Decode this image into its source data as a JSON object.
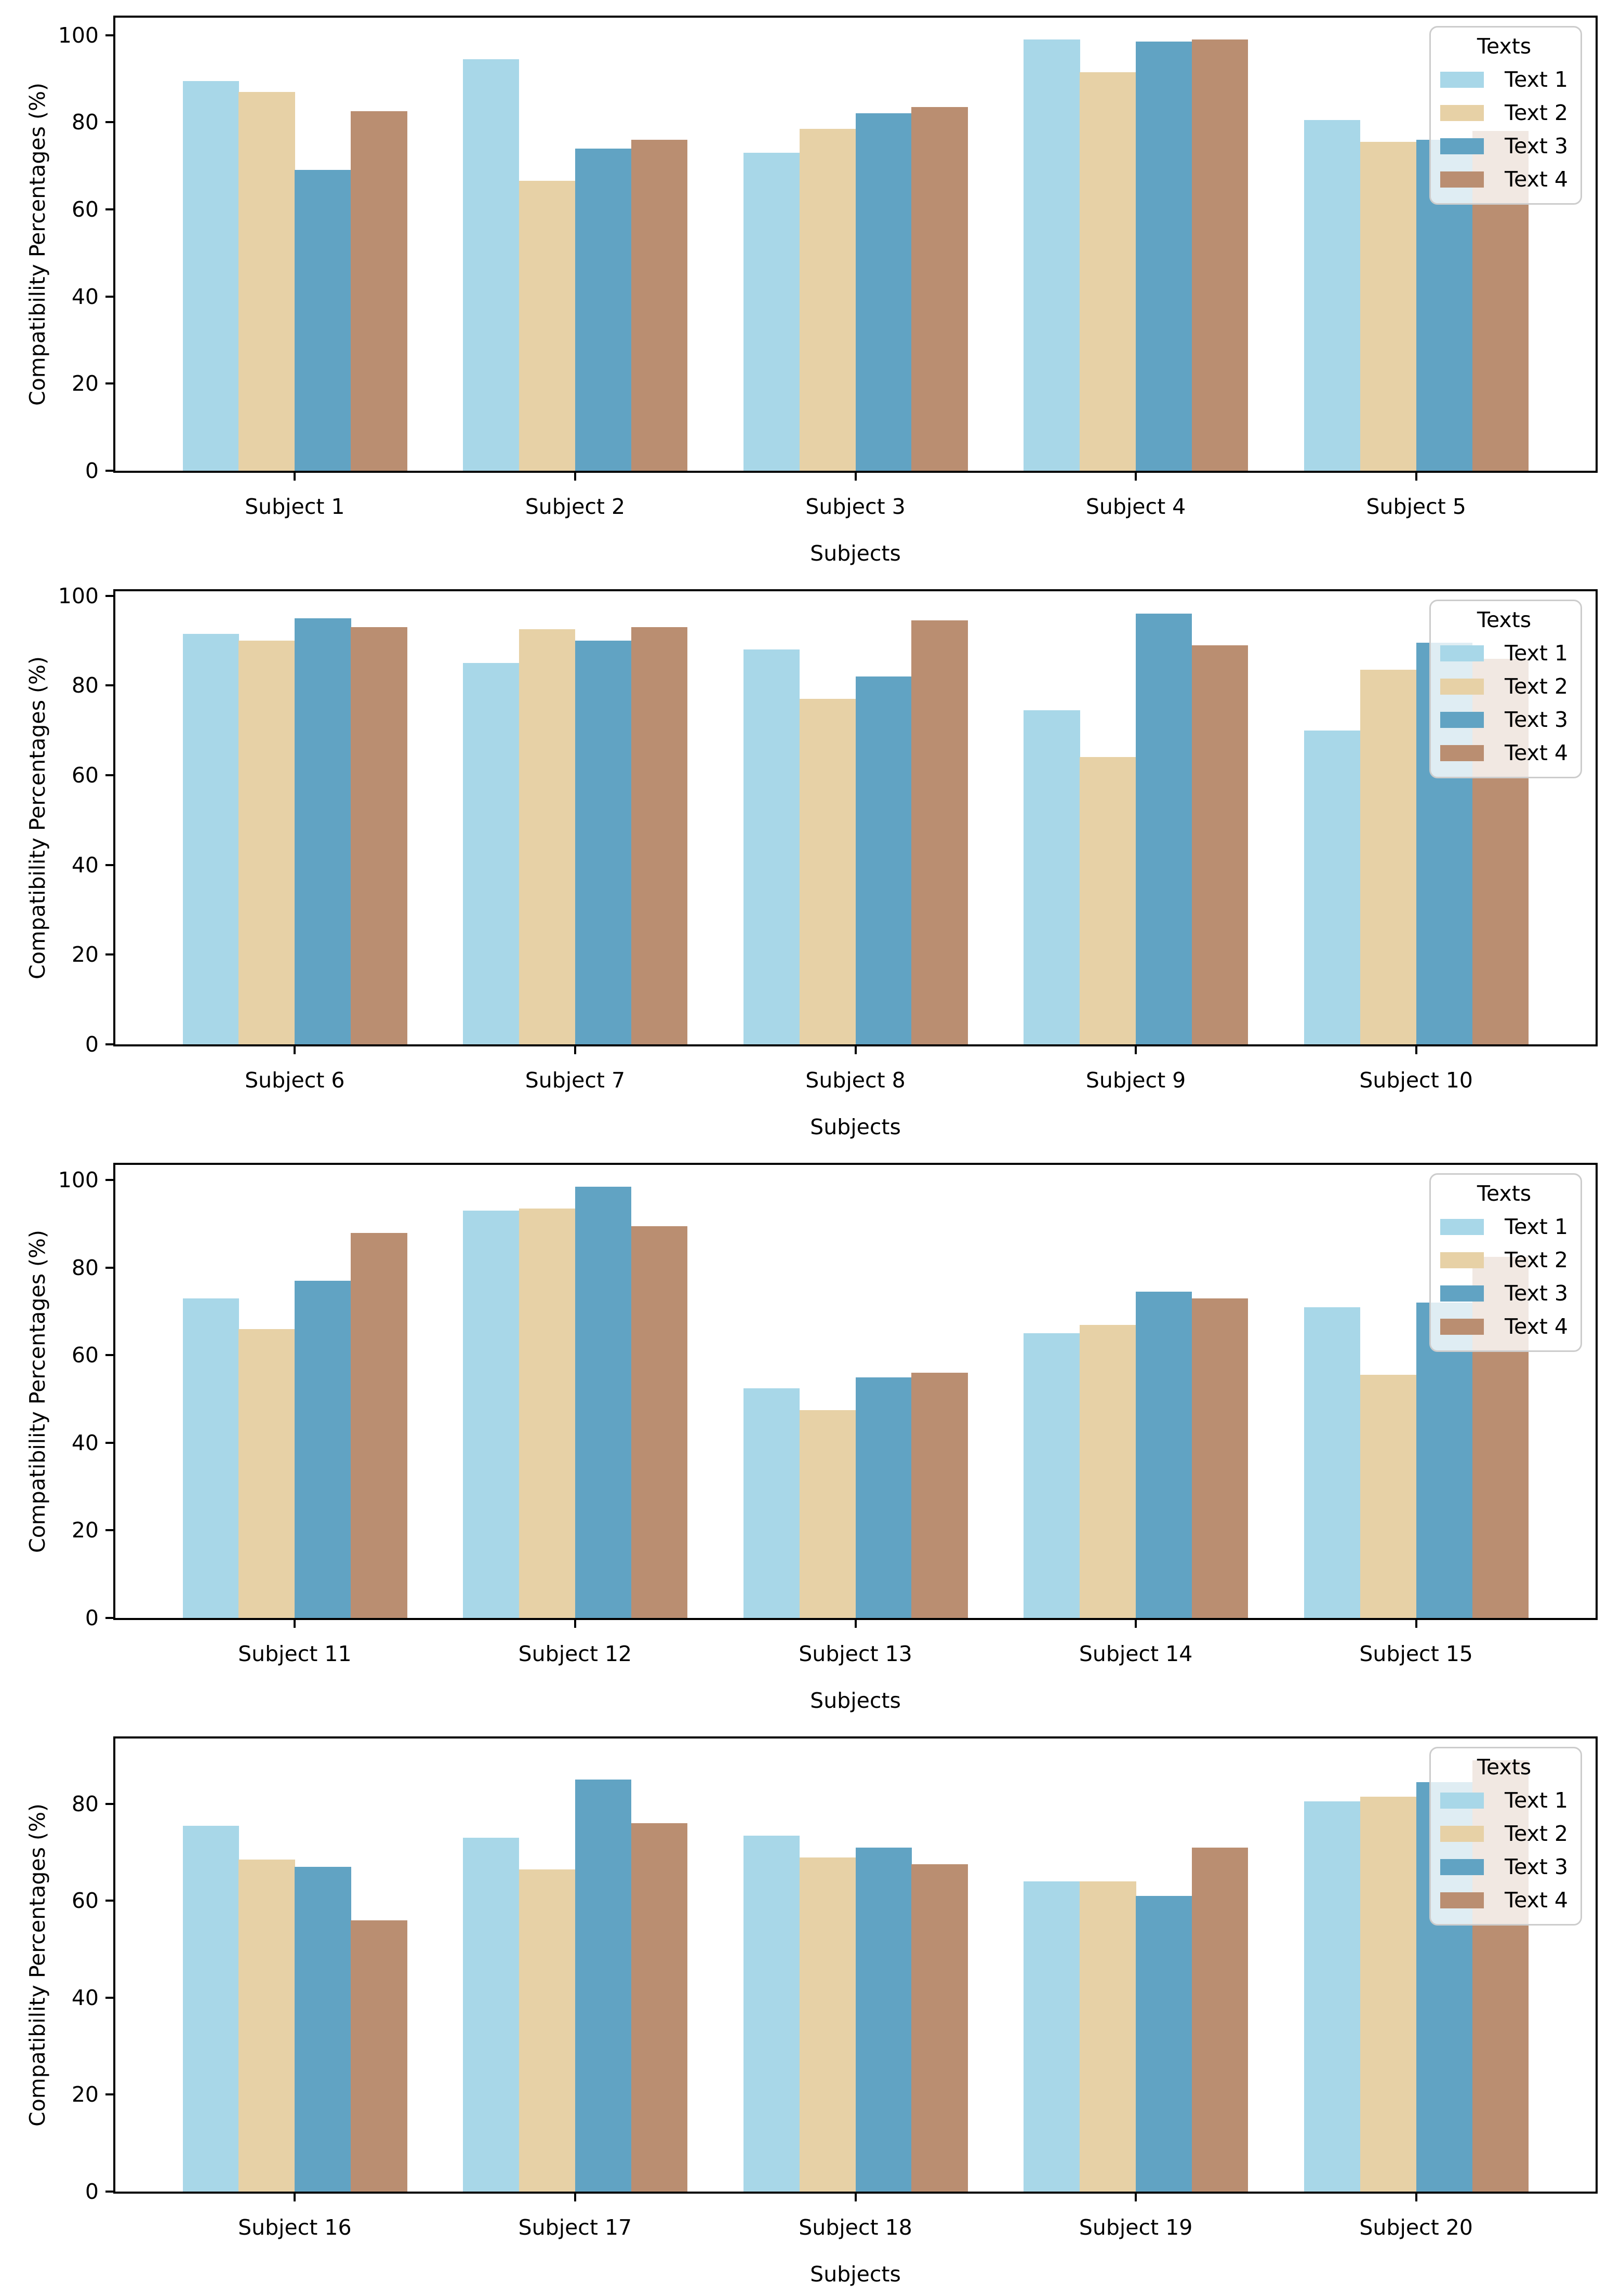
{
  "figure_background": "#ffffff",
  "palette": {
    "text1": "#A8D7E8",
    "text2": "#E7D1A6",
    "text3": "#61A3C3",
    "text4": "#BA8E71"
  },
  "chart_data": [
    {
      "type": "bar",
      "title": "",
      "xlabel": "Subjects",
      "ylabel": "Compatibility Percentages (%)",
      "legend_title": "Texts",
      "legend_position": "upper right",
      "grid": false,
      "categories": [
        "Subject 1",
        "Subject 2",
        "Subject 3",
        "Subject 4",
        "Subject 5"
      ],
      "yticks": [
        0,
        20,
        40,
        60,
        80,
        100
      ],
      "ylim": [
        0,
        104
      ],
      "series": [
        {
          "name": "Text 1",
          "color": "#A8D7E8",
          "values": [
            89.5,
            94.5,
            73.0,
            99.0,
            80.5
          ]
        },
        {
          "name": "Text 2",
          "color": "#E7D1A6",
          "values": [
            87.0,
            66.5,
            78.5,
            91.5,
            75.5
          ]
        },
        {
          "name": "Text 3",
          "color": "#61A3C3",
          "values": [
            69.0,
            74.0,
            82.0,
            98.5,
            76.0
          ]
        },
        {
          "name": "Text 4",
          "color": "#BA8E71",
          "values": [
            82.5,
            76.0,
            83.5,
            99.0,
            78.0
          ]
        }
      ]
    },
    {
      "type": "bar",
      "title": "",
      "xlabel": "Subjects",
      "ylabel": "Compatibility Percentages (%)",
      "legend_title": "Texts",
      "legend_position": "upper right",
      "grid": false,
      "categories": [
        "Subject 6",
        "Subject 7",
        "Subject 8",
        "Subject 9",
        "Subject 10"
      ],
      "yticks": [
        0,
        20,
        40,
        60,
        80,
        100
      ],
      "ylim": [
        0,
        101
      ],
      "series": [
        {
          "name": "Text 1",
          "color": "#A8D7E8",
          "values": [
            91.5,
            85.0,
            88.0,
            74.5,
            70.0
          ]
        },
        {
          "name": "Text 2",
          "color": "#E7D1A6",
          "values": [
            90.0,
            92.5,
            77.0,
            64.0,
            83.5
          ]
        },
        {
          "name": "Text 3",
          "color": "#61A3C3",
          "values": [
            95.0,
            90.0,
            82.0,
            96.0,
            89.5
          ]
        },
        {
          "name": "Text 4",
          "color": "#BA8E71",
          "values": [
            93.0,
            93.0,
            94.5,
            89.0,
            86.0
          ]
        }
      ]
    },
    {
      "type": "bar",
      "title": "",
      "xlabel": "Subjects",
      "ylabel": "Compatibility Percentages (%)",
      "legend_title": "Texts",
      "legend_position": "upper right",
      "grid": false,
      "categories": [
        "Subject 11",
        "Subject 12",
        "Subject 13",
        "Subject 14",
        "Subject 15"
      ],
      "yticks": [
        0,
        20,
        40,
        60,
        80,
        100
      ],
      "ylim": [
        0,
        103.5
      ],
      "series": [
        {
          "name": "Text 1",
          "color": "#A8D7E8",
          "values": [
            73.0,
            93.0,
            52.5,
            65.0,
            71.0
          ]
        },
        {
          "name": "Text 2",
          "color": "#E7D1A6",
          "values": [
            66.0,
            93.5,
            47.5,
            67.0,
            55.5
          ]
        },
        {
          "name": "Text 3",
          "color": "#61A3C3",
          "values": [
            77.0,
            98.5,
            55.0,
            74.5,
            72.0
          ]
        },
        {
          "name": "Text 4",
          "color": "#BA8E71",
          "values": [
            88.0,
            89.5,
            56.0,
            73.0,
            82.5
          ]
        }
      ]
    },
    {
      "type": "bar",
      "title": "",
      "xlabel": "Subjects",
      "ylabel": "Compatibility Percentages (%)",
      "legend_title": "Texts",
      "legend_position": "upper right",
      "grid": false,
      "categories": [
        "Subject 16",
        "Subject 17",
        "Subject 18",
        "Subject 19",
        "Subject 20"
      ],
      "yticks": [
        0,
        20,
        40,
        60,
        80
      ],
      "ylim": [
        0,
        93.5
      ],
      "series": [
        {
          "name": "Text 1",
          "color": "#A8D7E8",
          "values": [
            75.5,
            73.0,
            73.5,
            64.0,
            80.5
          ]
        },
        {
          "name": "Text 2",
          "color": "#E7D1A6",
          "values": [
            68.5,
            66.5,
            69.0,
            64.0,
            81.5
          ]
        },
        {
          "name": "Text 3",
          "color": "#61A3C3",
          "values": [
            67.0,
            85.0,
            71.0,
            61.0,
            84.5
          ]
        },
        {
          "name": "Text 4",
          "color": "#BA8E71",
          "values": [
            56.0,
            76.0,
            67.5,
            71.0,
            89.0
          ]
        }
      ]
    }
  ]
}
